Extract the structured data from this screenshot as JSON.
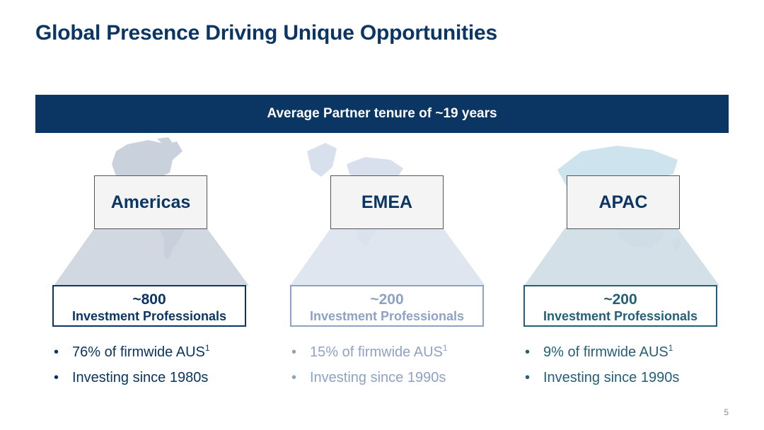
{
  "title": "Global Presence Driving Unique Opportunities",
  "banner": "Average Partner tenure of ~19 years",
  "colors": {
    "navy": "#0b3563",
    "emea_blue": "#8ea3c3",
    "apac_teal": "#245f78",
    "americas_map": "#c9d1dc",
    "emea_map": "#d7e0ec",
    "apac_map": "#cde4ef"
  },
  "regions": [
    {
      "name": "Americas",
      "count": "~800",
      "label": "Investment Professionals",
      "bullets": [
        {
          "text": "76% of firmwide AUS",
          "sup": "1"
        },
        {
          "text": "Investing since 1980s",
          "sup": ""
        }
      ]
    },
    {
      "name": "EMEA",
      "count": "~200",
      "label": "Investment Professionals",
      "bullets": [
        {
          "text": "15% of firmwide AUS",
          "sup": "1"
        },
        {
          "text": "Investing since 1990s",
          "sup": ""
        }
      ]
    },
    {
      "name": "APAC",
      "count": "~200",
      "label": "Investment Professionals",
      "bullets": [
        {
          "text": "9% of firmwide AUS",
          "sup": "1"
        },
        {
          "text": "Investing since 1990s",
          "sup": ""
        }
      ]
    }
  ],
  "page_number": "5"
}
